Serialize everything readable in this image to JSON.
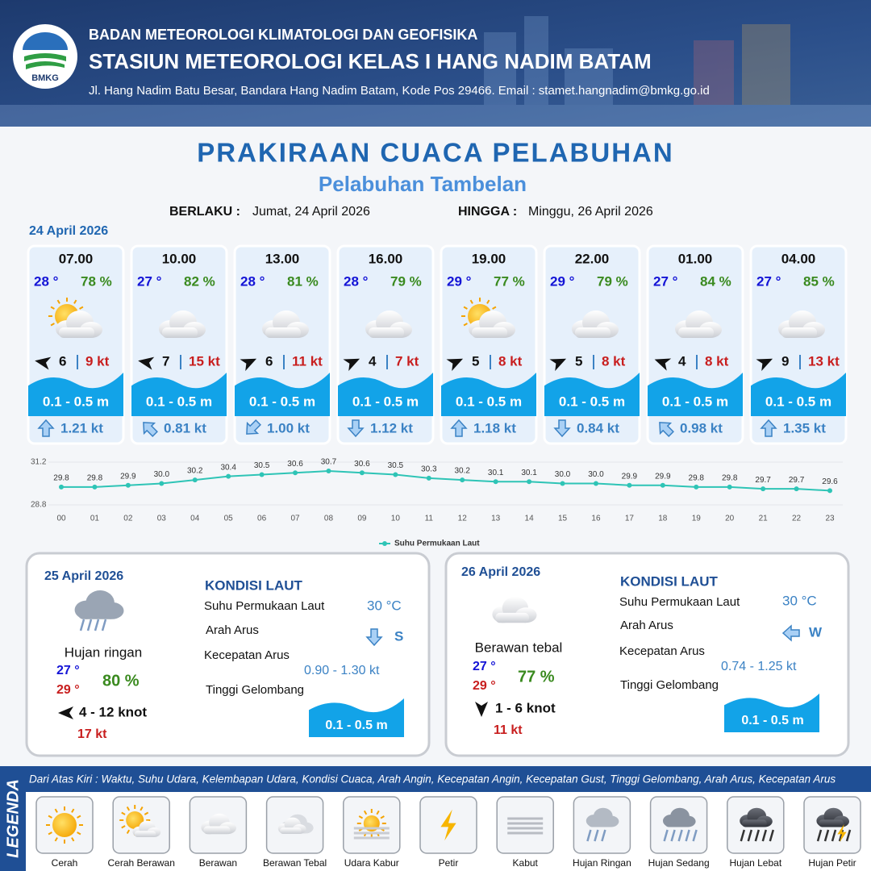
{
  "header": {
    "logo_text": "BMKG",
    "organization": "BADAN METEOROLOGI KLIMATOLOGI DAN GEOFISIKA",
    "station": "STASIUN METEOROLOGI KELAS I HANG NADIM BATAM",
    "address": "Jl. Hang Nadim Batu Besar, Bandara Hang Nadim Batam, Kode Pos 29466. Email : stamet.hangnadim@bmkg.go.id"
  },
  "title": "PRAKIRAAN CUACA PELABUHAN",
  "subtitle": "Pelabuhan Tambelan",
  "validity": {
    "from_label": "BERLAKU :",
    "from": "Jumat, 24 April 2026",
    "to_label": "HINGGA :",
    "to": "Minggu, 26 April 2026"
  },
  "day1": {
    "date": "24 April 2026",
    "forecasts": [
      {
        "time": "07.00",
        "temp": "28 °",
        "humidity": "78 %",
        "wind": "6",
        "gust": "9 kt",
        "wave": "0.1 - 0.5 m",
        "current": "1.21 kt"
      },
      {
        "time": "10.00",
        "temp": "27 °",
        "humidity": "82 %",
        "wind": "7",
        "gust": "15 kt",
        "wave": "0.1 - 0.5 m",
        "current": "0.81 kt"
      },
      {
        "time": "13.00",
        "temp": "28 °",
        "humidity": "81 %",
        "wind": "6",
        "gust": "11 kt",
        "wave": "0.1 - 0.5 m",
        "current": "1.00 kt"
      },
      {
        "time": "16.00",
        "temp": "28 °",
        "humidity": "79 %",
        "wind": "4",
        "gust": "7 kt",
        "wave": "0.1 - 0.5 m",
        "current": "1.12 kt"
      },
      {
        "time": "19.00",
        "temp": "29 °",
        "humidity": "77 %",
        "wind": "5",
        "gust": "8 kt",
        "wave": "0.1 - 0.5 m",
        "current": "1.18 kt"
      },
      {
        "time": "22.00",
        "temp": "29 °",
        "humidity": "79 %",
        "wind": "5",
        "gust": "8 kt",
        "wave": "0.1 - 0.5 m",
        "current": "0.84 kt"
      },
      {
        "time": "01.00",
        "temp": "27 °",
        "humidity": "84 %",
        "wind": "4",
        "gust": "8 kt",
        "wave": "0.1 - 0.5 m",
        "current": "0.98 kt"
      },
      {
        "time": "04.00",
        "temp": "27 °",
        "humidity": "85 %",
        "wind": "9",
        "gust": "13 kt",
        "wave": "0.1 - 0.5 m",
        "current": "1.35 kt"
      }
    ]
  },
  "chart_data": {
    "type": "line",
    "categories": [
      "00",
      "01",
      "02",
      "03",
      "04",
      "05",
      "06",
      "07",
      "08",
      "09",
      "10",
      "11",
      "12",
      "13",
      "14",
      "15",
      "16",
      "17",
      "18",
      "19",
      "20",
      "21",
      "22",
      "23"
    ],
    "series": [
      {
        "name": "Suhu Permukaan Laut",
        "color": "#2ec4b6",
        "values": [
          29.8,
          29.8,
          29.9,
          30.0,
          30.2,
          30.4,
          30.5,
          30.6,
          30.7,
          30.6,
          30.5,
          30.3,
          30.2,
          30.1,
          30.1,
          30.0,
          30.0,
          29.9,
          29.9,
          29.8,
          29.8,
          29.7,
          29.7,
          29.6
        ],
        "value_labels": [
          "29.8",
          "29.8",
          "29.9",
          "30.0",
          "30.2",
          "30.4",
          "30.5",
          "30.6",
          "30.7",
          "30.6",
          "30.5",
          "30.3",
          "30.2",
          "30.1",
          "30.1",
          "30.0",
          "30.0",
          "29.9",
          "29.9",
          "29.8",
          "29.8",
          "29.7",
          "29.7",
          "29.6"
        ]
      }
    ],
    "ylim": [
      28.8,
      31.2
    ],
    "yticks": [
      28.8,
      31.2
    ],
    "legend": "bottom"
  },
  "day2": {
    "date": "25 April 2026",
    "condition": "Hujan ringan",
    "temp_min": "27 °",
    "temp_max": "29 °",
    "humidity": "80 %",
    "wind": "4  - 12 knot",
    "gust": "17 kt",
    "sea_heading": "KONDISI LAUT",
    "sst_label": "Suhu Permukaan Laut",
    "sst": "30 °C",
    "current_dir_label": "Arah Arus",
    "current_dir": "S",
    "current_speed_label": "Kecepatan Arus",
    "current_speed": "0.90  - 1.30 kt",
    "wave_label": "Tinggi Gelombang",
    "wave": "0.1 - 0.5 m"
  },
  "day3": {
    "date": "26 April 2026",
    "condition": "Berawan tebal",
    "temp_min": "27 °",
    "temp_max": "29 °",
    "humidity": "77 %",
    "wind": "1  - 6 knot",
    "gust": "11 kt",
    "sea_heading": "KONDISI LAUT",
    "sst_label": "Suhu Permukaan Laut",
    "sst": "30 °C",
    "current_dir_label": "Arah Arus",
    "current_dir": "W",
    "current_speed_label": "Kecepatan Arus",
    "current_speed": "0.74  - 1.25 kt",
    "wave_label": "Tinggi Gelombang",
    "wave": "0.1 - 0.5 m"
  },
  "legend": {
    "title": "LEGENDA",
    "description": "Dari Atas Kiri : Waktu, Suhu Udara, Kelembapan Udara, Kondisi Cuaca, Arah Angin, Kecepatan Angin, Kecepatan Gust, Tinggi Gelombang, Arah Arus, Kecepatan Arus",
    "items": [
      "Cerah",
      "Cerah Berawan",
      "Berawan",
      "Berawan Tebal",
      "Udara Kabur",
      "Petir",
      "Kabut",
      "Hujan Ringan",
      "Hujan Sedang",
      "Hujan Lebat",
      "Hujan Petir"
    ]
  }
}
